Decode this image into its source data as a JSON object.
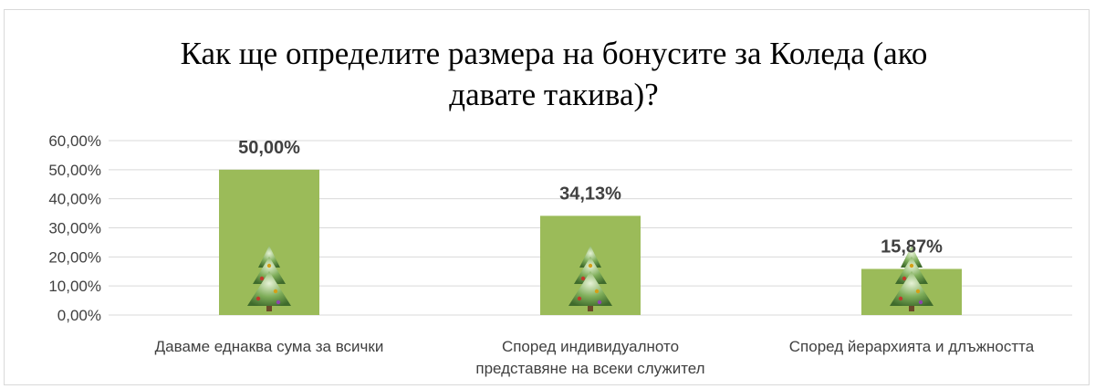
{
  "chart_data": {
    "type": "bar",
    "title_lines": [
      "Как ще определите размера на бонусите за Коледа (ако",
      "давате такива)?"
    ],
    "categories": [
      [
        "Даваме еднаква сума за всички"
      ],
      [
        "Според индивидуалното",
        "представяне на всеки служител"
      ],
      [
        "Според йерархията и длъжността"
      ]
    ],
    "values": [
      50.0,
      34.13,
      15.87
    ],
    "data_labels": [
      "50,00%",
      "34,13%",
      "15,87%"
    ],
    "ylim": [
      0,
      60
    ],
    "yticks": [
      0,
      10,
      20,
      30,
      40,
      50,
      60
    ],
    "ytick_labels": [
      "0,00%",
      "10,00%",
      "20,00%",
      "30,00%",
      "40,00%",
      "50,00%",
      "60,00%"
    ],
    "grid": true,
    "legend": "none",
    "bar_color": "#9bbb59",
    "bar_icon": "christmas-tree-icon",
    "colors": {
      "grid": "#d9d9d9",
      "text": "#404040",
      "title": "#000000"
    }
  }
}
